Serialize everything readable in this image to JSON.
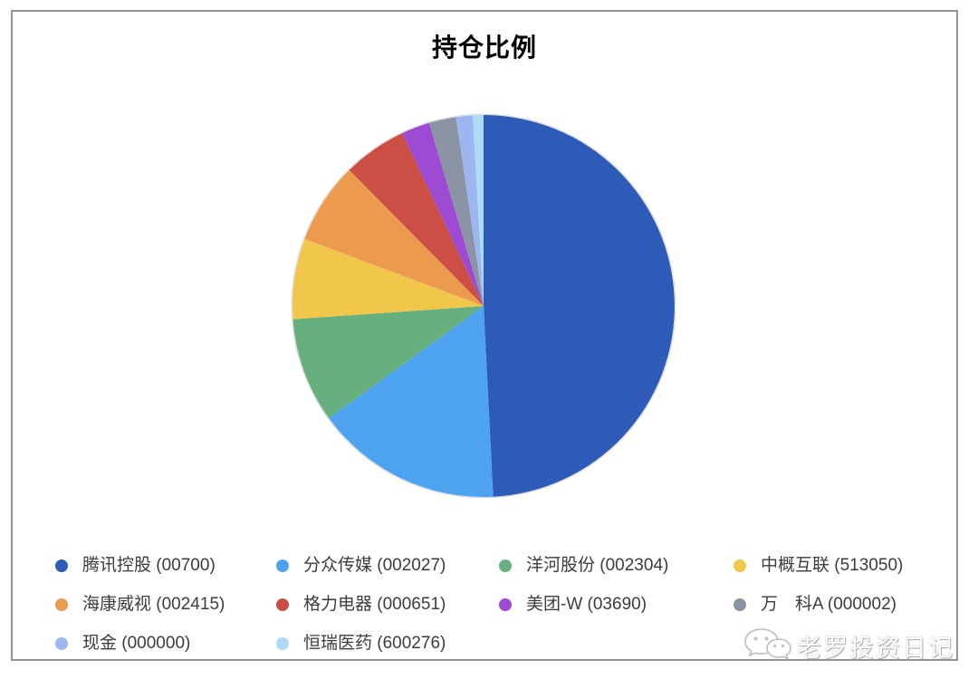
{
  "page": {
    "background": "#ffffff",
    "frame_border_color": "#929292"
  },
  "chart_data": {
    "type": "pie",
    "title": "持仓比例",
    "legend_position": "bottom",
    "start_angle_deg": 0,
    "direction": "clockwise",
    "units": "percent_estimated_from_angles",
    "series": [
      {
        "name": "腾讯控股 (00700)",
        "value": 49.2,
        "color": "#2E5BB7"
      },
      {
        "name": "分众传媒 (002027)",
        "value": 15.8,
        "color": "#4DA3EF"
      },
      {
        "name": "洋河股份 (002304)",
        "value": 8.9,
        "color": "#66AF7F"
      },
      {
        "name": "中概互联 (513050)",
        "value": 6.8,
        "color": "#F0C74A"
      },
      {
        "name": "海康威视 (002415)",
        "value": 6.9,
        "color": "#EC9A4E"
      },
      {
        "name": "格力电器 (000651)",
        "value": 5.4,
        "color": "#CC4F46"
      },
      {
        "name": "美团-W (03690)",
        "value": 2.4,
        "color": "#9C4BD2"
      },
      {
        "name": "万　科A (000002)",
        "value": 2.3,
        "color": "#8B94A4"
      },
      {
        "name": "现金 (000000)",
        "value": 1.4,
        "color": "#9DB6EF"
      },
      {
        "name": "恒瑞医药 (600276)",
        "value": 0.9,
        "color": "#AEDAF8"
      }
    ]
  },
  "watermark": {
    "text": "老罗投资日记",
    "icon": "wechat-icon"
  }
}
